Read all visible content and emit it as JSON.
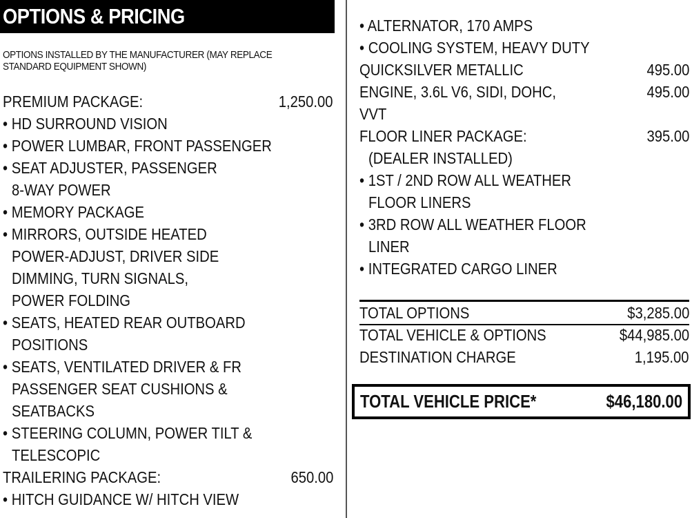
{
  "header": {
    "title": "OPTIONS & PRICING"
  },
  "subtitle": [
    "OPTIONS INSTALLED BY THE MANUFACTURER (MAY REPLACE",
    "STANDARD EQUIPMENT SHOWN)"
  ],
  "left_lines": [
    {
      "text": "PREMIUM PACKAGE:",
      "price": "1,250.00"
    },
    {
      "text": "• HD SURROUND VISION"
    },
    {
      "text": "• POWER LUMBAR, FRONT PASSENGER"
    },
    {
      "text": "• SEAT ADJUSTER, PASSENGER"
    },
    {
      "text": "8-WAY POWER",
      "indent": true
    },
    {
      "text": "• MEMORY PACKAGE"
    },
    {
      "text": "• MIRRORS, OUTSIDE HEATED"
    },
    {
      "text": "POWER-ADJUST, DRIVER SIDE",
      "indent": true
    },
    {
      "text": "DIMMING, TURN SIGNALS,",
      "indent": true
    },
    {
      "text": "POWER FOLDING",
      "indent": true
    },
    {
      "text": "• SEATS, HEATED REAR OUTBOARD"
    },
    {
      "text": "POSITIONS",
      "indent": true
    },
    {
      "text": "• SEATS, VENTILATED DRIVER & FR"
    },
    {
      "text": "PASSENGER SEAT CUSHIONS &",
      "indent": true
    },
    {
      "text": "SEATBACKS",
      "indent": true
    },
    {
      "text": "• STEERING COLUMN, POWER TILT &"
    },
    {
      "text": "TELESCOPIC",
      "indent": true
    },
    {
      "text": "TRAILERING PACKAGE:",
      "price": "650.00"
    },
    {
      "text": "• HITCH GUIDANCE W/ HITCH VIEW"
    }
  ],
  "right_lines": [
    {
      "text": "• ALTERNATOR, 170 AMPS"
    },
    {
      "text": "• COOLING SYSTEM, HEAVY  DUTY"
    },
    {
      "text": "QUICKSILVER METALLIC",
      "price": "495.00"
    },
    {
      "text": "ENGINE, 3.6L V6, SIDI, DOHC,",
      "price": "495.00"
    },
    {
      "text": "VVT"
    },
    {
      "text": "FLOOR LINER PACKAGE:",
      "price": "395.00"
    },
    {
      "text": " (DEALER INSTALLED)",
      "indent": true
    },
    {
      "text": "• 1ST / 2ND ROW ALL WEATHER"
    },
    {
      "text": "FLOOR LINERS",
      "indent": true
    },
    {
      "text": "• 3RD ROW ALL WEATHER FLOOR"
    },
    {
      "text": "LINER",
      "indent": true
    },
    {
      "text": "• INTEGRATED CARGO LINER"
    }
  ],
  "totals": [
    {
      "label": "TOTAL OPTIONS",
      "value": "$3,285.00"
    },
    {
      "label": "TOTAL VEHICLE & OPTIONS",
      "value": "$44,985.00"
    },
    {
      "label": "DESTINATION CHARGE",
      "value": "1,195.00"
    }
  ],
  "grand_total": {
    "label": "TOTAL VEHICLE PRICE*",
    "value": "$46,180.00"
  }
}
